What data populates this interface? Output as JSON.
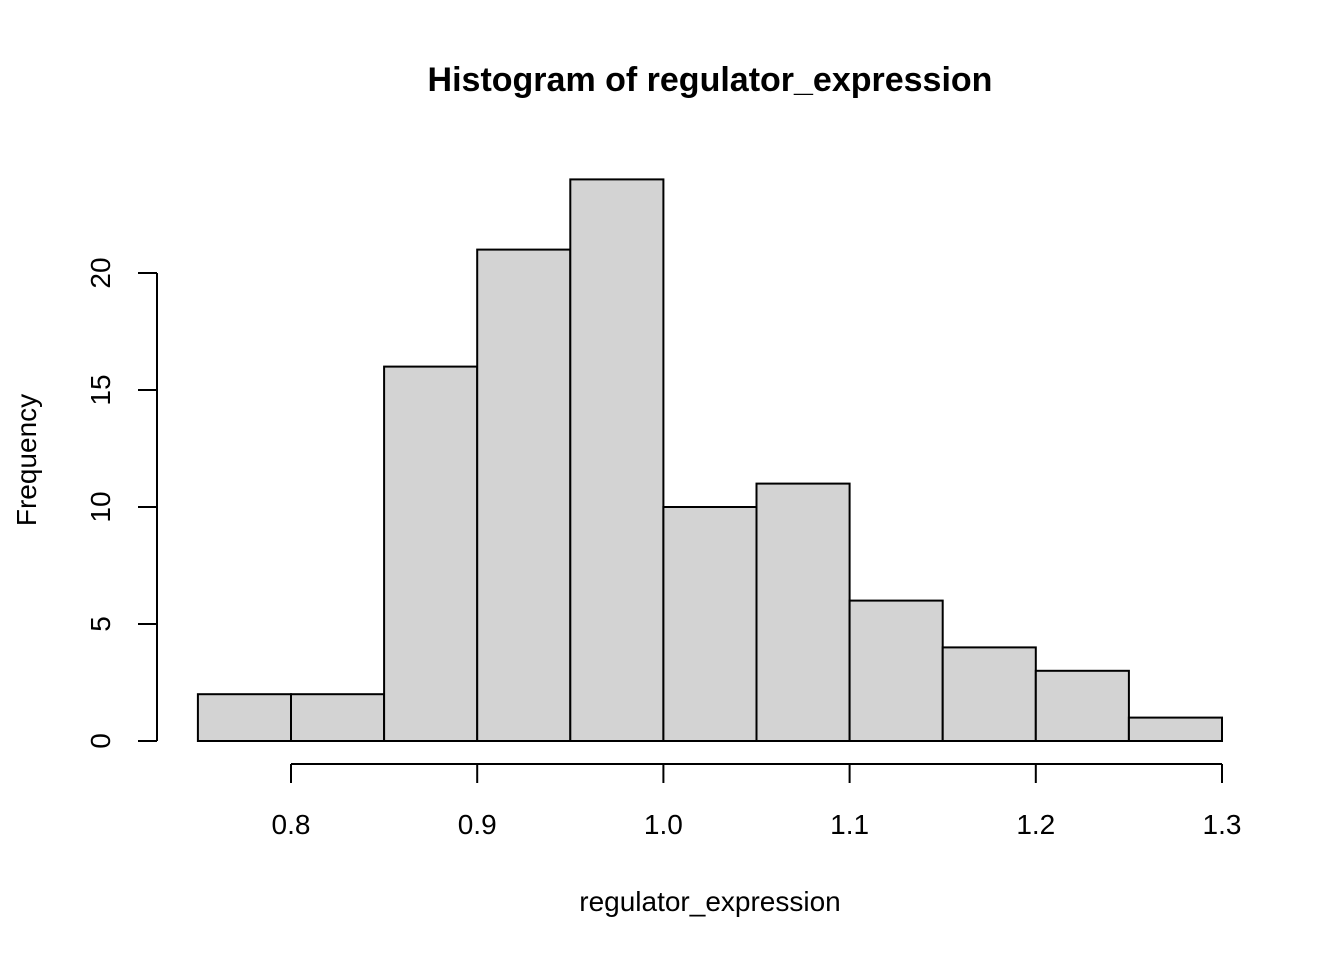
{
  "chart_data": {
    "type": "bar",
    "title": "Histogram of regulator_expression",
    "xlabel": "regulator_expression",
    "ylabel": "Frequency",
    "bin_edges": [
      0.75,
      0.8,
      0.85,
      0.9,
      0.95,
      1.0,
      1.05,
      1.1,
      1.15,
      1.2,
      1.25,
      1.3
    ],
    "values": [
      2,
      2,
      16,
      21,
      24,
      10,
      11,
      6,
      4,
      3,
      1
    ],
    "xlim": [
      0.75,
      1.3
    ],
    "ylim": [
      0,
      24
    ],
    "x_ticks": [
      0.8,
      0.9,
      1.0,
      1.1,
      1.2,
      1.3
    ],
    "x_tick_labels": [
      "0.8",
      "0.9",
      "1.0",
      "1.1",
      "1.2",
      "1.3"
    ],
    "y_ticks": [
      0,
      5,
      10,
      15,
      20
    ],
    "y_tick_labels": [
      "0",
      "5",
      "10",
      "15",
      "20"
    ],
    "bar_color": "#d3d3d3",
    "bar_border_color": "#000000",
    "grid": false,
    "legend": "none"
  }
}
